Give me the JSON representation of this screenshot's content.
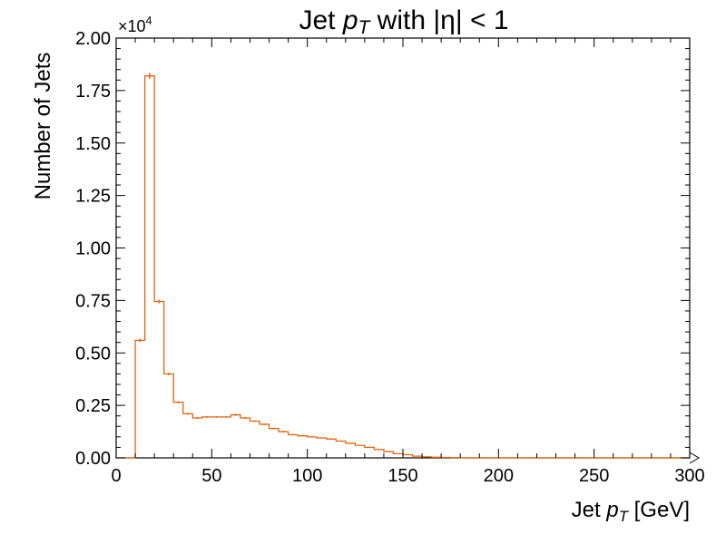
{
  "chart_data": {
    "type": "bar",
    "title": {
      "prefix": "Jet ",
      "var": "p",
      "sub": "T",
      "suffix": " with |η| < 1"
    },
    "xlabel": {
      "prefix": "Jet ",
      "var": "p",
      "sub": "T",
      "suffix": " [GeV]"
    },
    "ylabel": "Number of Jets",
    "y_offset_label": {
      "base": "×10",
      "exp": "4"
    },
    "xlim": [
      0,
      300
    ],
    "ylim": [
      0,
      2.0
    ],
    "x_ticks": [
      0,
      50,
      100,
      150,
      200,
      250,
      300
    ],
    "x_tick_labels": [
      "0",
      "50",
      "100",
      "150",
      "200",
      "250",
      "300"
    ],
    "y_ticks": [
      0,
      0.25,
      0.5,
      0.75,
      1.0,
      1.25,
      1.5,
      1.75,
      2.0
    ],
    "y_tick_labels": [
      "0.00",
      "0.25",
      "0.50",
      "0.75",
      "1.00",
      "1.25",
      "1.50",
      "1.75",
      "2.00"
    ],
    "bin_edges": [
      0,
      5,
      10,
      15,
      20,
      25,
      30,
      35,
      40,
      45,
      50,
      55,
      60,
      65,
      70,
      75,
      80,
      85,
      90,
      95,
      100,
      105,
      110,
      115,
      120,
      125,
      130,
      135,
      140,
      145,
      150,
      155,
      160,
      165,
      170,
      175,
      180,
      185,
      190,
      195,
      200,
      205,
      210,
      215,
      220,
      225,
      230,
      235,
      240,
      245,
      250,
      255,
      260,
      265,
      270,
      275,
      280,
      285,
      290,
      295,
      300
    ],
    "values": [
      0,
      0,
      0.56,
      1.82,
      0.745,
      0.4,
      0.265,
      0.21,
      0.19,
      0.195,
      0.195,
      0.195,
      0.205,
      0.19,
      0.175,
      0.16,
      0.14,
      0.125,
      0.11,
      0.105,
      0.1,
      0.095,
      0.09,
      0.08,
      0.07,
      0.06,
      0.05,
      0.04,
      0.03,
      0.02,
      0.015,
      0.008,
      0.005,
      0.003,
      0.002,
      0.001,
      0,
      0,
      0,
      0,
      0,
      0,
      0,
      0,
      0,
      0,
      0,
      0,
      0,
      0,
      0,
      0,
      0,
      0,
      0,
      0,
      0,
      0,
      0,
      0
    ],
    "errors": [
      0,
      0,
      0.008,
      0.014,
      0.009,
      0.006,
      0.005,
      0.005,
      0.004,
      0.004,
      0.004,
      0.004,
      0.005,
      0.004,
      0.004,
      0.004,
      0.004,
      0.004,
      0.003,
      0.003,
      0.003,
      0.003,
      0.003,
      0.003,
      0.003,
      0.002,
      0.002,
      0.002,
      0.002,
      0.001,
      0.001,
      0.001,
      0.001,
      0,
      0,
      0,
      0,
      0,
      0,
      0,
      0,
      0,
      0,
      0,
      0,
      0,
      0,
      0,
      0,
      0,
      0,
      0,
      0,
      0,
      0,
      0,
      0,
      0,
      0,
      0
    ],
    "color": "#e4640c",
    "grid": false
  }
}
